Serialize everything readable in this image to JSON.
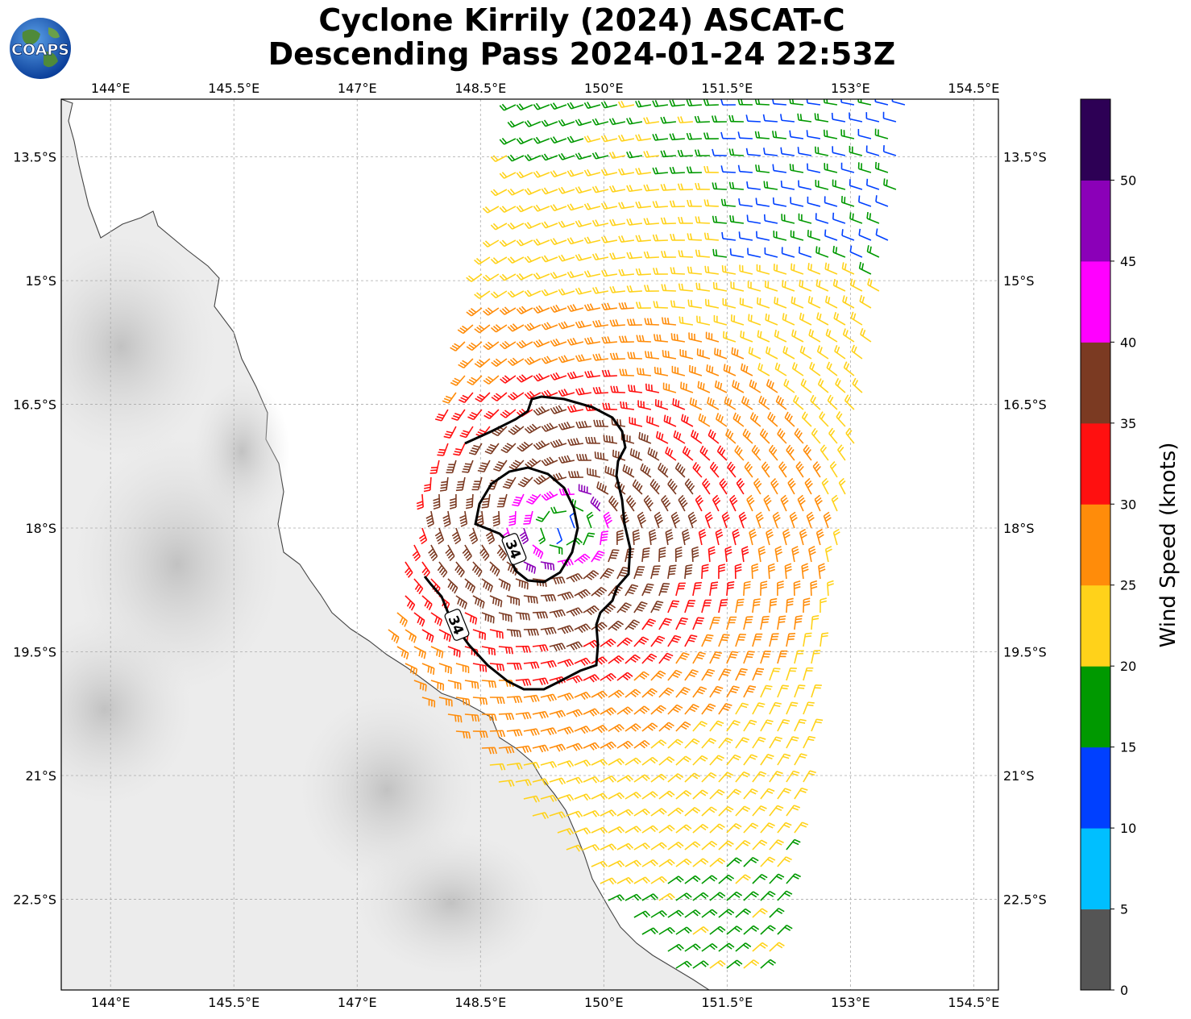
{
  "title": {
    "line1": "Cyclone Kirrily (2024) ASCAT-C",
    "line2": "Descending Pass 2024-01-24 22:53Z"
  },
  "logo_text": "COAPS",
  "map": {
    "lon_ticks": [
      "144°E",
      "145.5°E",
      "147°E",
      "148.5°E",
      "150°E",
      "151.5°E",
      "153°E",
      "154.5°E"
    ],
    "lat_ticks": [
      "13.5°S",
      "15°S",
      "16.5°S",
      "18°S",
      "19.5°S",
      "21°S",
      "22.5°S"
    ],
    "lon_values": [
      144,
      145.5,
      147,
      148.5,
      150,
      151.5,
      153,
      154.5
    ],
    "lat_values": [
      -13.5,
      -15,
      -16.5,
      -18,
      -19.5,
      -21,
      -22.5
    ],
    "lon_range": [
      143.4,
      154.8
    ],
    "lat_range": [
      -12.8,
      -23.6
    ],
    "contour_labels": [
      "34",
      "34"
    ],
    "contour_level_knots": 34
  },
  "colorbar": {
    "label": "Wind Speed (knots)",
    "ticks": [
      "0",
      "5",
      "10",
      "15",
      "20",
      "25",
      "30",
      "35",
      "40",
      "45",
      "50"
    ],
    "colors": [
      "#555555",
      "#00bfff",
      "#0040ff",
      "#009900",
      "#ffd21a",
      "#ff8c0a",
      "#ff1010",
      "#7b3a22",
      "#ff00ff",
      "#8b00b8",
      "#2d0055"
    ]
  },
  "chart_data": {
    "type": "map",
    "title": "Cyclone Kirrily (2024) ASCAT-C Descending Pass 2024-01-24 22:53Z",
    "variable": "Wind Speed (knots)",
    "colorbar_bins_knots": [
      0,
      5,
      10,
      15,
      20,
      25,
      30,
      35,
      40,
      45,
      50
    ],
    "center_approx": {
      "lon": 149.5,
      "lat": -18.0
    },
    "contour_34kt_present": true
  }
}
